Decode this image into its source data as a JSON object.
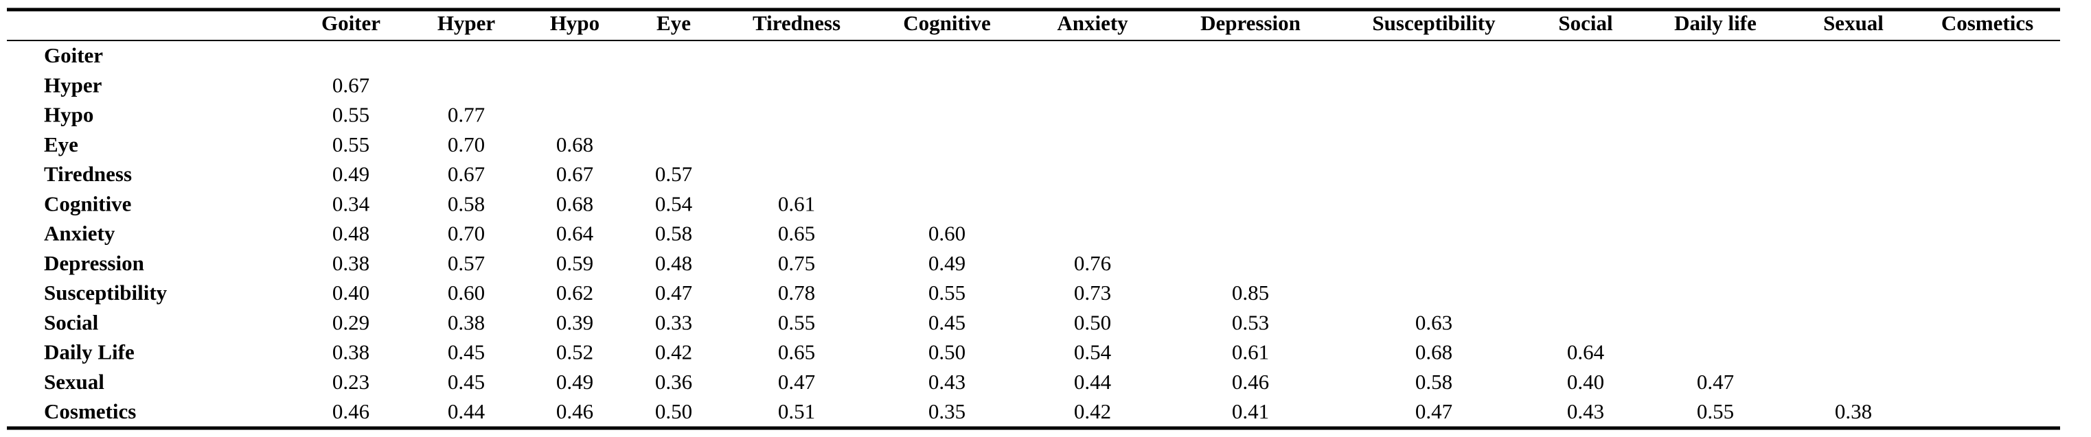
{
  "table": {
    "columns": [
      "Goiter",
      "Hyper",
      "Hypo",
      "Eye",
      "Tiredness",
      "Cognitive",
      "Anxiety",
      "Depression",
      "Susceptibility",
      "Social",
      "Daily life",
      "Sexual",
      "Cosmetics"
    ],
    "rows": [
      {
        "label": "Goiter",
        "values": []
      },
      {
        "label": "Hyper",
        "values": [
          "0.67"
        ]
      },
      {
        "label": "Hypo",
        "values": [
          "0.55",
          "0.77"
        ]
      },
      {
        "label": "Eye",
        "values": [
          "0.55",
          "0.70",
          "0.68"
        ]
      },
      {
        "label": "Tiredness",
        "values": [
          "0.49",
          "0.67",
          "0.67",
          "0.57"
        ]
      },
      {
        "label": "Cognitive",
        "values": [
          "0.34",
          "0.58",
          "0.68",
          "0.54",
          "0.61"
        ]
      },
      {
        "label": "Anxiety",
        "values": [
          "0.48",
          "0.70",
          "0.64",
          "0.58",
          "0.65",
          "0.60"
        ]
      },
      {
        "label": "Depression",
        "values": [
          "0.38",
          "0.57",
          "0.59",
          "0.48",
          "0.75",
          "0.49",
          "0.76"
        ]
      },
      {
        "label": "Susceptibility",
        "values": [
          "0.40",
          "0.60",
          "0.62",
          "0.47",
          "0.78",
          "0.55",
          "0.73",
          "0.85"
        ]
      },
      {
        "label": "Social",
        "values": [
          "0.29",
          "0.38",
          "0.39",
          "0.33",
          "0.55",
          "0.45",
          "0.50",
          "0.53",
          "0.63"
        ]
      },
      {
        "label": "Daily Life",
        "values": [
          "0.38",
          "0.45",
          "0.52",
          "0.42",
          "0.65",
          "0.50",
          "0.54",
          "0.61",
          "0.68",
          "0.64"
        ]
      },
      {
        "label": "Sexual",
        "values": [
          "0.23",
          "0.45",
          "0.49",
          "0.36",
          "0.47",
          "0.43",
          "0.44",
          "0.46",
          "0.58",
          "0.40",
          "0.47"
        ]
      },
      {
        "label": "Cosmetics",
        "values": [
          "0.46",
          "0.44",
          "0.46",
          "0.50",
          "0.51",
          "0.35",
          "0.42",
          "0.41",
          "0.47",
          "0.43",
          "0.55",
          "0.38"
        ]
      }
    ]
  }
}
